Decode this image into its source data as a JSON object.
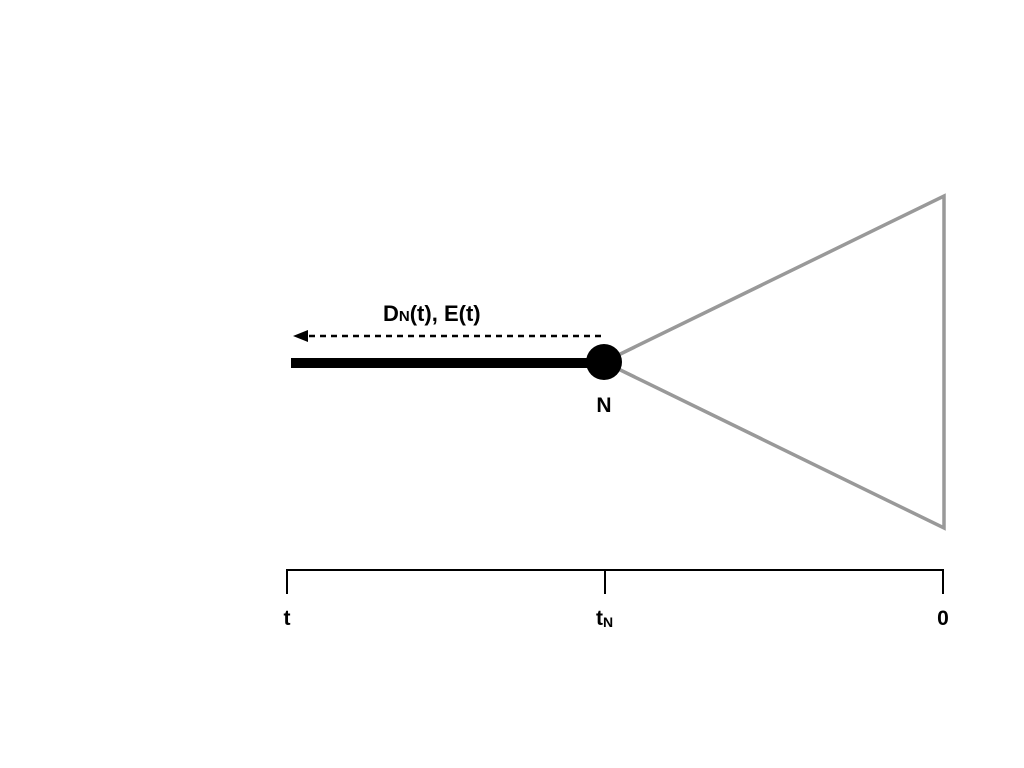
{
  "flow_label": {
    "d_main": "D",
    "d_sub": "N",
    "rest": "(t), E(t)"
  },
  "node_label": "N",
  "axis": {
    "left": "t",
    "mid_main": "t",
    "mid_sub": "N",
    "right": "0"
  },
  "colors": {
    "lineage": "#000000",
    "subtree": "#999999",
    "axis": "#000000"
  }
}
